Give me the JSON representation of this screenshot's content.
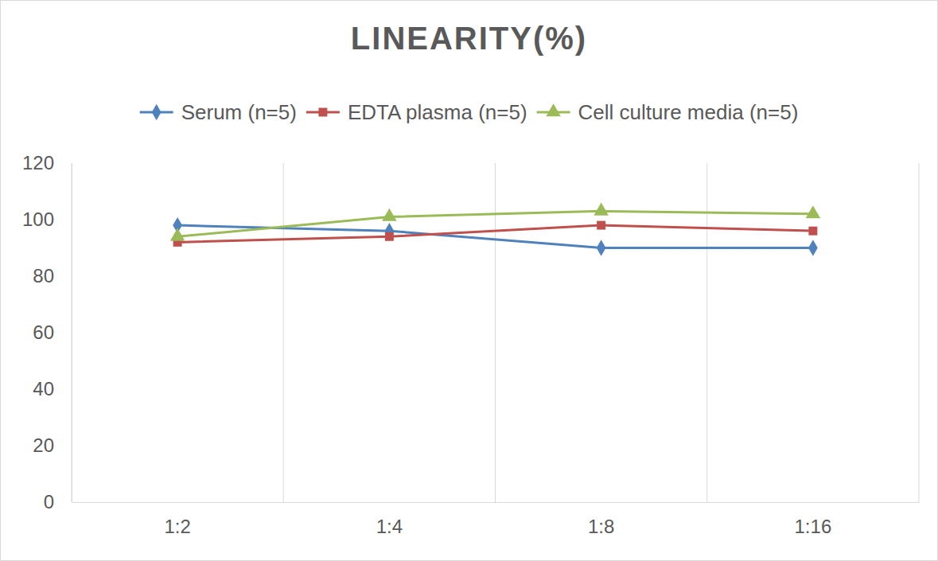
{
  "chart_data": {
    "type": "line",
    "title": "LINEARITY(%)",
    "categories": [
      "1:2",
      "1:4",
      "1:8",
      "1:16"
    ],
    "series": [
      {
        "name": "Serum (n=5)",
        "color": "#4f81bd",
        "marker": "diamond",
        "values": [
          98,
          96,
          90,
          90
        ]
      },
      {
        "name": "EDTA plasma (n=5)",
        "color": "#c0504d",
        "marker": "square",
        "values": [
          92,
          94,
          98,
          96
        ]
      },
      {
        "name": "Cell culture media (n=5)",
        "color": "#9bbb59",
        "marker": "triangle",
        "values": [
          94,
          101,
          103,
          102
        ]
      }
    ],
    "ylim": [
      0,
      120
    ],
    "yticks": [
      0,
      20,
      40,
      60,
      80,
      100,
      120
    ],
    "grid": true,
    "legend": "top"
  }
}
